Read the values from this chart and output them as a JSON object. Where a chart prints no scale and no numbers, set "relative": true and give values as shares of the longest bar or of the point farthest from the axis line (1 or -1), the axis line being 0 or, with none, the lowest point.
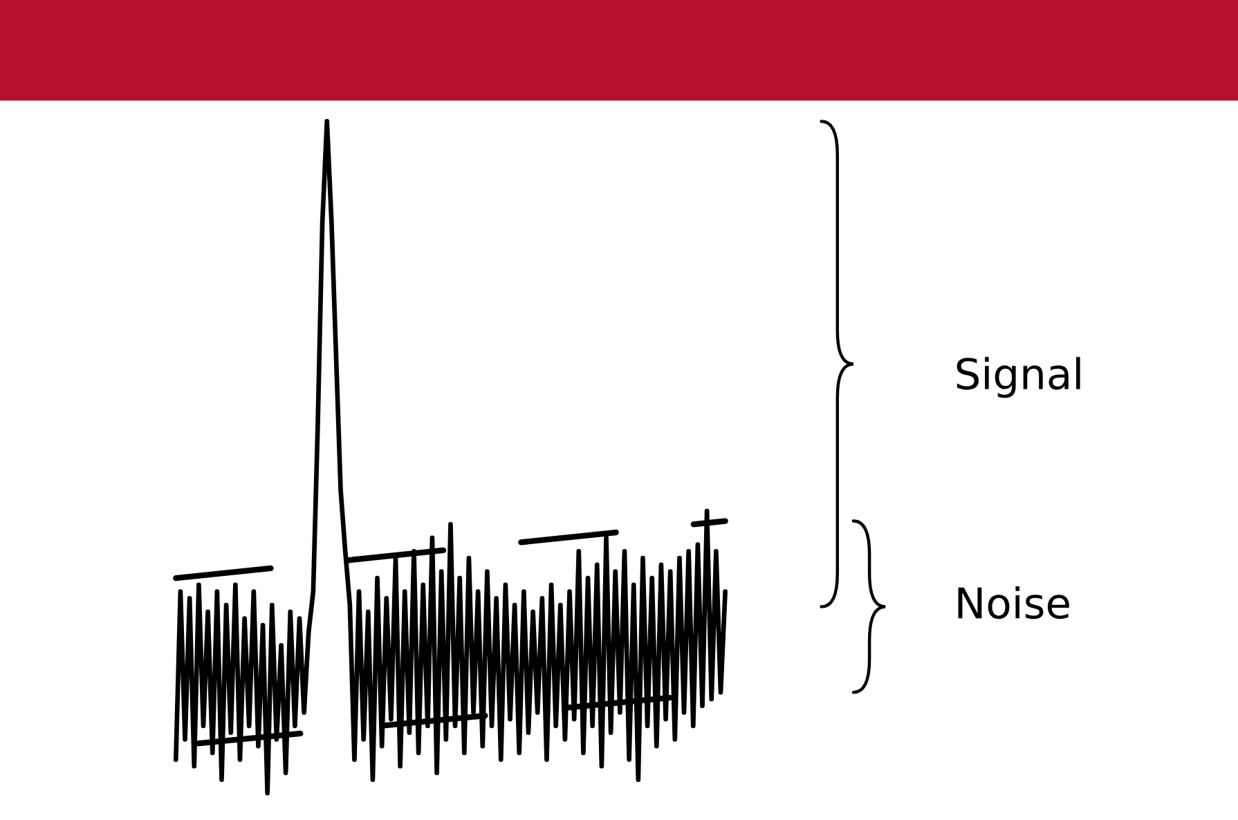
{
  "chart_data": {
    "type": "line",
    "relative": true,
    "legend": false,
    "grid": false,
    "marker": "none",
    "categories": [
      null,
      null,
      null,
      null,
      null,
      null,
      null,
      null,
      null,
      null,
      null,
      null,
      null,
      null,
      null,
      null,
      null,
      null,
      null,
      null,
      null,
      null,
      null,
      null,
      null,
      null,
      null,
      null,
      null,
      null,
      null,
      null,
      null,
      null,
      null,
      null,
      null,
      null,
      null,
      null,
      null,
      null,
      null,
      null,
      null,
      null,
      null,
      null,
      null,
      null,
      null,
      null,
      null,
      null,
      null,
      null,
      null,
      null,
      null,
      null,
      null,
      null,
      null,
      null,
      null,
      null,
      null,
      null,
      null,
      null,
      null,
      null,
      null,
      null,
      null,
      null,
      null,
      null,
      null,
      null,
      null,
      null,
      null,
      null,
      null,
      null,
      null,
      null,
      null,
      null,
      null,
      null,
      null,
      null,
      null,
      null,
      null,
      null,
      null,
      null,
      null,
      null,
      null,
      null,
      null,
      null,
      null,
      null,
      null,
      null,
      null,
      null,
      null,
      null,
      null,
      null,
      null,
      null,
      null,
      null,
      null
    ],
    "series": [
      {
        "color": "#000000",
        "line_style": "solid",
        "values": [
          0.05,
          0.3,
          0.08,
          0.29,
          0.04,
          0.31,
          0.1,
          0.27,
          0.06,
          0.3,
          0.02,
          0.28,
          0.09,
          0.31,
          0.05,
          0.26,
          0.1,
          0.3,
          0.07,
          0.25,
          0.0,
          0.28,
          0.08,
          0.22,
          0.03,
          0.27,
          0.1,
          0.26,
          0.12,
          0.24,
          0.3,
          0.55,
          0.85,
          1.0,
          0.85,
          0.65,
          0.45,
          0.36,
          0.28,
          0.05,
          0.3,
          0.08,
          0.27,
          0.02,
          0.32,
          0.07,
          0.29,
          0.11,
          0.35,
          0.04,
          0.3,
          0.09,
          0.36,
          0.06,
          0.31,
          0.1,
          0.38,
          0.03,
          0.33,
          0.08,
          0.4,
          0.1,
          0.32,
          0.06,
          0.35,
          0.12,
          0.3,
          0.07,
          0.33,
          0.1,
          0.29,
          0.05,
          0.31,
          0.11,
          0.28,
          0.06,
          0.3,
          0.09,
          0.27,
          0.12,
          0.29,
          0.05,
          0.31,
          0.1,
          0.28,
          0.08,
          0.3,
          0.11,
          0.36,
          0.06,
          0.32,
          0.1,
          0.34,
          0.04,
          0.38,
          0.09,
          0.33,
          0.12,
          0.36,
          0.05,
          0.31,
          0.02,
          0.35,
          0.1,
          0.32,
          0.07,
          0.34,
          0.11,
          0.33,
          0.08,
          0.35,
          0.12,
          0.36,
          0.1,
          0.37,
          0.13,
          0.42,
          0.14,
          0.36,
          0.15,
          0.3
        ]
      },
      {
        "color": "#000000",
        "line_style": "dashed",
        "values": [
          0.32,
          null,
          null,
          null,
          null,
          null,
          null,
          null,
          null,
          null,
          null,
          null,
          null,
          null,
          null,
          null,
          null,
          null,
          null,
          null,
          null,
          null,
          null,
          null,
          null,
          null,
          null,
          null,
          null,
          null,
          null,
          null,
          null,
          null,
          null,
          null,
          null,
          null,
          null,
          null,
          null,
          null,
          null,
          null,
          null,
          null,
          null,
          null,
          null,
          null,
          null,
          null,
          null,
          null,
          null,
          null,
          null,
          null,
          null,
          null,
          null,
          null,
          null,
          null,
          null,
          null,
          null,
          null,
          null,
          null,
          null,
          null,
          null,
          null,
          null,
          null,
          null,
          null,
          null,
          null,
          null,
          null,
          null,
          null,
          null,
          null,
          null,
          null,
          null,
          null,
          null,
          null,
          null,
          null,
          null,
          null,
          null,
          null,
          null,
          null,
          null,
          null,
          null,
          null,
          null,
          null,
          null,
          null,
          null,
          null,
          null,
          null,
          null,
          null,
          null,
          null,
          null,
          null,
          null,
          null,
          0.405
        ]
      },
      {
        "color": "#000000",
        "line_style": "dashed",
        "values": [
          null,
          null,
          null,
          null,
          null,
          0.074,
          null,
          null,
          null,
          null,
          null,
          null,
          null,
          null,
          null,
          null,
          null,
          null,
          null,
          null,
          null,
          null,
          null,
          null,
          null,
          null,
          null,
          null,
          null,
          null,
          null,
          null,
          null,
          null,
          null,
          null,
          null,
          null,
          null,
          null,
          null,
          null,
          null,
          null,
          null,
          null,
          null,
          null,
          null,
          null,
          null,
          null,
          null,
          null,
          null,
          null,
          null,
          null,
          null,
          null,
          null,
          null,
          null,
          null,
          null,
          null,
          null,
          null,
          null,
          null,
          null,
          null,
          null,
          null,
          null,
          null,
          null,
          null,
          null,
          null,
          null,
          null,
          null,
          null,
          null,
          null,
          null,
          null,
          null,
          null,
          null,
          null,
          null,
          null,
          null,
          null,
          null,
          null,
          null,
          null,
          null,
          null,
          null,
          null,
          null,
          null,
          null,
          null,
          null,
          null,
          null,
          null,
          null,
          null,
          null,
          null,
          null,
          null,
          null,
          null,
          0.15
        ]
      }
    ],
    "annotations": [
      "Signal",
      "Noise"
    ]
  }
}
